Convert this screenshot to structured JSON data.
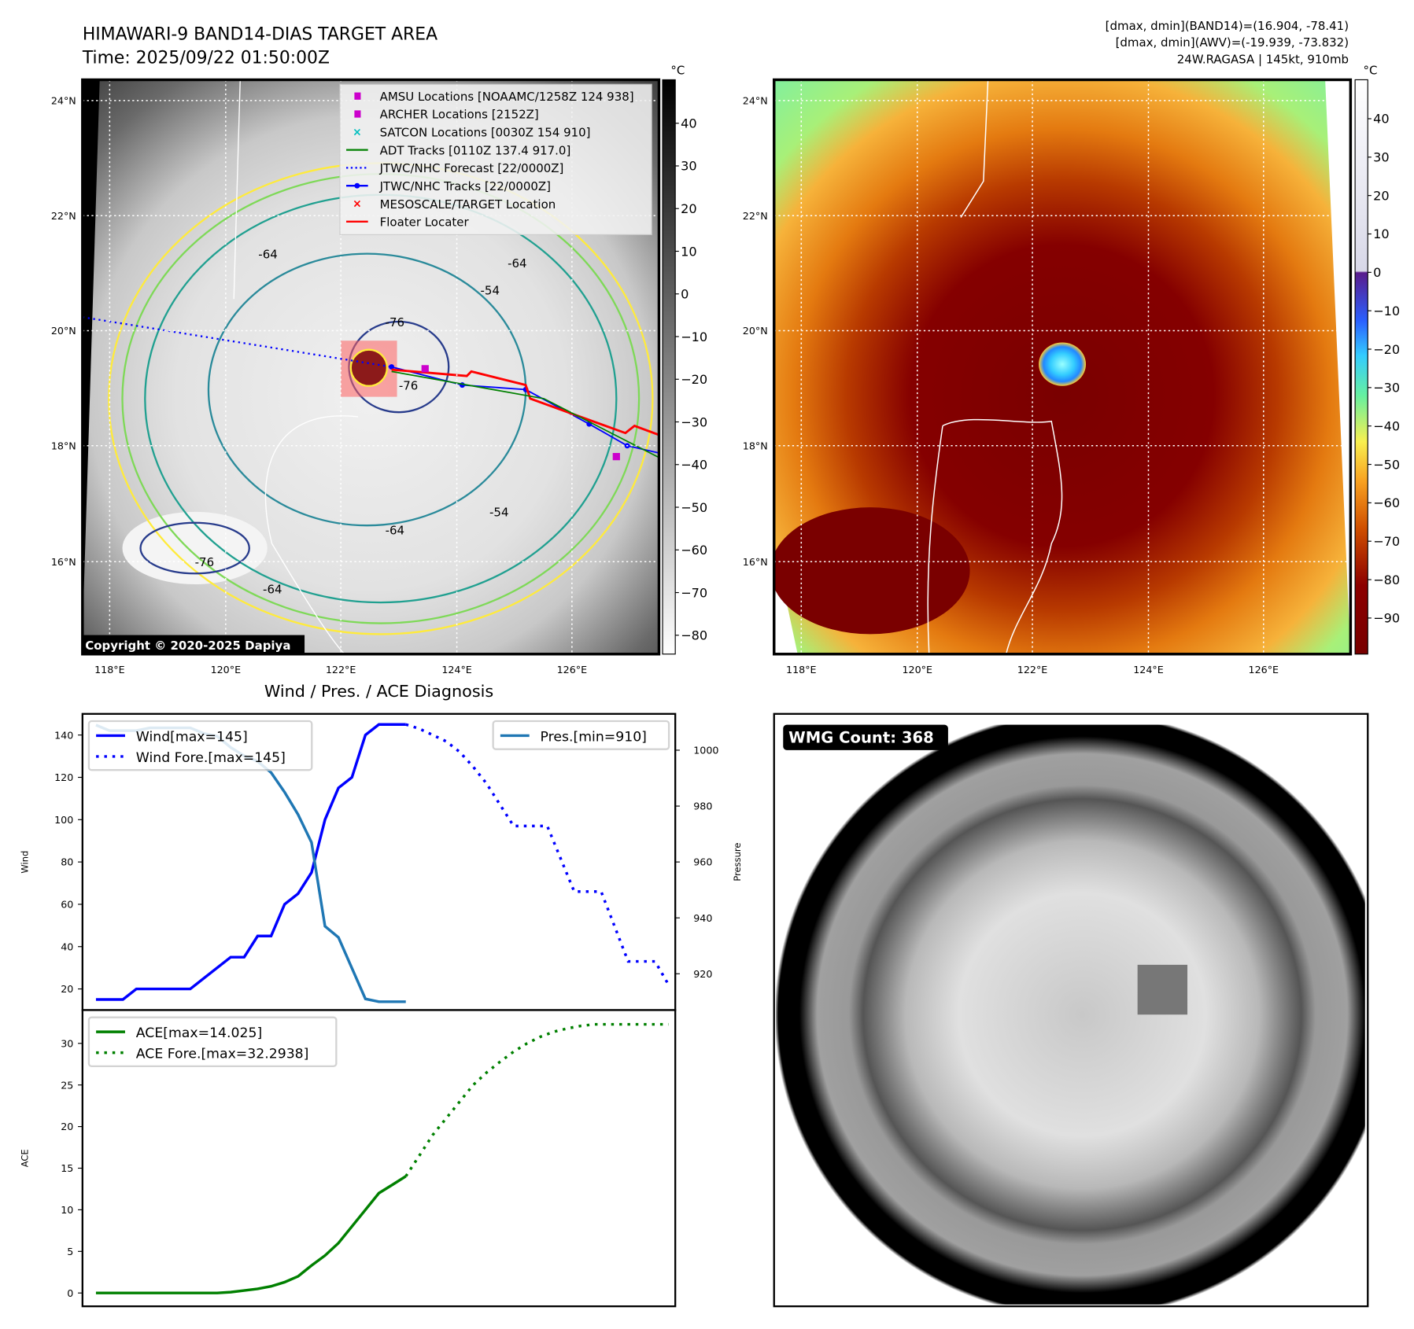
{
  "header": {
    "title": "HIMAWARI-9 BAND14-DIAS TARGET AREA",
    "time": "Time: 2025/09/22 01:50:00Z",
    "stats_line1": "[dmax, dmin](BAND14)=(16.904, -78.41)",
    "stats_line2": "[dmax, dmin](AWV)=(-19.939, -73.832)",
    "stats_line3": "24W.RAGASA | 145kt, 910mb"
  },
  "map": {
    "lon_ticks": [
      "118°E",
      "120°E",
      "122°E",
      "124°E",
      "126°E"
    ],
    "lat_ticks": [
      "24°N",
      "22°N",
      "20°N",
      "18°N",
      "16°N"
    ],
    "copyright": "Copyright © 2020-2025 Dapiya",
    "contour_labels": [
      "-76",
      "-64",
      "-54",
      "-76",
      "-64",
      "-64",
      "-54",
      "-76",
      "-64"
    ],
    "legend": [
      {
        "label": "AMSU Locations [NOAAMC/1258Z 124 938]",
        "marker": "square",
        "color": "#cc00cc"
      },
      {
        "label": "ARCHER Locations [2152Z]",
        "marker": "square",
        "color": "#cc00cc"
      },
      {
        "label": "SATCON Locations [0030Z 154 910]",
        "marker": "x",
        "color": "#00bfbf"
      },
      {
        "label": "ADT Tracks [0110Z 137.4 917.0]",
        "marker": "line",
        "color": "#008000"
      },
      {
        "label": "JTWC/NHC Forecast [22/0000Z]",
        "marker": "dotted",
        "color": "#0000ff"
      },
      {
        "label": "JTWC/NHC Tracks [22/0000Z]",
        "marker": "line-dot",
        "color": "#0000ff"
      },
      {
        "label": "MESOSCALE/TARGET Location",
        "marker": "x",
        "color": "#ff0000"
      },
      {
        "label": "Floater Locater",
        "marker": "line",
        "color": "#ff0000"
      }
    ]
  },
  "colorbar_left": {
    "unit": "°C",
    "ticks": [
      "40",
      "30",
      "20",
      "10",
      "0",
      "−10",
      "−20",
      "−30",
      "−40",
      "−50",
      "−60",
      "−70",
      "−80"
    ]
  },
  "colorbar_right": {
    "unit": "°C",
    "ticks": [
      "40",
      "30",
      "20",
      "10",
      "0",
      "−10",
      "−20",
      "−30",
      "−40",
      "−50",
      "−60",
      "−70",
      "−80",
      "−90"
    ]
  },
  "chart_data": [
    {
      "type": "line",
      "title": "Wind / Pres. / ACE Diagnosis",
      "ylabel": "Wind",
      "y2label": "Pressure",
      "ylim": [
        10,
        150
      ],
      "y2lim": [
        907,
        1013
      ],
      "xlim": [
        -1,
        43
      ],
      "yticks": [
        20,
        40,
        60,
        80,
        100,
        120,
        140
      ],
      "y2ticks": [
        920,
        940,
        960,
        980,
        1000
      ],
      "legend_left": [
        "Wind[max=145]",
        "Wind Fore.[max=145]"
      ],
      "legend_right": [
        "Pres.[min=910]"
      ],
      "series": [
        {
          "name": "Wind[max=145]",
          "color": "#0000ff",
          "style": "solid",
          "axis": "left",
          "x": [
            0,
            2,
            3,
            7,
            10,
            11,
            12,
            13,
            14,
            15,
            16,
            17,
            18,
            19,
            20,
            21,
            23
          ],
          "y": [
            15,
            15,
            20,
            20,
            35,
            35,
            45,
            45,
            60,
            65,
            75,
            100,
            115,
            120,
            140,
            145,
            145
          ]
        },
        {
          "name": "Wind Fore.[max=145]",
          "color": "#0000ff",
          "style": "dotted",
          "axis": "left",
          "x": [
            23,
            24,
            25,
            26,
            27,
            28,
            29,
            30,
            31,
            33.5,
            35.5,
            37.5,
            39.5,
            41.5,
            42.5
          ],
          "y": [
            145,
            143,
            140,
            137,
            132,
            125,
            117,
            107,
            97,
            97,
            66,
            66,
            33,
            33,
            22
          ]
        },
        {
          "name": "Pres.[min=910]",
          "color": "#1f77b4",
          "style": "solid",
          "axis": "right",
          "x": [
            0,
            1,
            2,
            3,
            4,
            7,
            8,
            9,
            10,
            11,
            12,
            13,
            14,
            15,
            16,
            17,
            18,
            19,
            20,
            21,
            23
          ],
          "y": [
            1009,
            1007,
            1007,
            1007,
            1008,
            1008,
            1006,
            1005,
            1001,
            998,
            996,
            992,
            985,
            977,
            967,
            937,
            933,
            922,
            911,
            910,
            910
          ]
        }
      ]
    },
    {
      "type": "line",
      "ylabel": "ACE",
      "ylim": [
        -1.6,
        34
      ],
      "xlim": [
        -1,
        43
      ],
      "yticks": [
        0,
        5,
        10,
        15,
        20,
        25,
        30
      ],
      "legend": [
        "ACE[max=14.025]",
        "ACE Fore.[max=32.2938]"
      ],
      "series": [
        {
          "name": "ACE[max=14.025]",
          "color": "#008000",
          "style": "solid",
          "x": [
            0,
            5,
            9,
            10,
            11,
            12,
            13,
            14,
            15,
            16,
            17,
            18,
            19,
            20,
            21,
            22,
            23
          ],
          "y": [
            0,
            0,
            0,
            0.1,
            0.3,
            0.5,
            0.8,
            1.3,
            2.0,
            3.3,
            4.5,
            6,
            8,
            10,
            12,
            13,
            14.025
          ]
        },
        {
          "name": "ACE Fore.[max=32.2938]",
          "color": "#008000",
          "style": "dotted",
          "x": [
            23,
            24,
            25,
            26,
            27,
            28,
            29,
            30,
            31,
            32,
            33,
            34,
            35,
            36,
            37,
            42.5
          ],
          "y": [
            14.025,
            16.5,
            19,
            21,
            23,
            25,
            26.5,
            27.8,
            29,
            30,
            30.8,
            31.4,
            31.8,
            32.1,
            32.29,
            32.29
          ]
        }
      ]
    }
  ],
  "wmg": {
    "label": "WMG Count: 368"
  }
}
